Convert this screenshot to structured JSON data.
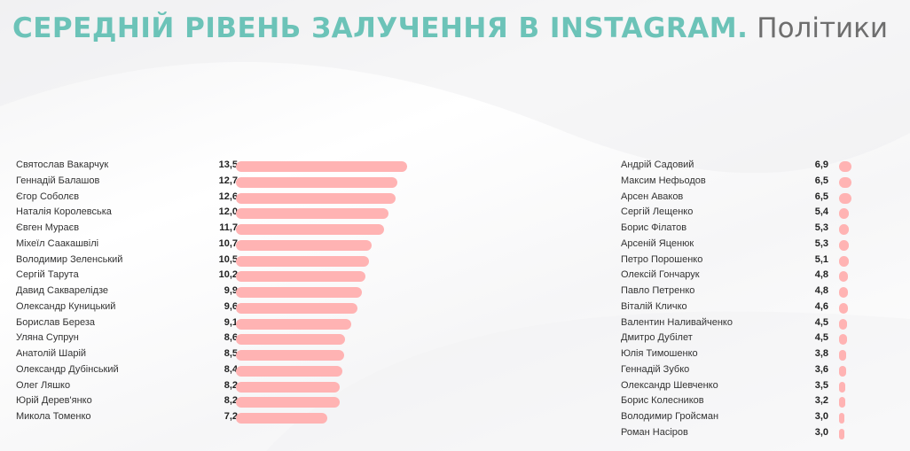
{
  "title": {
    "main": "СЕРЕДНІЙ РІВЕНЬ ЗАЛУЧЕННЯ В INSTAGRAM.",
    "sub": "Політики"
  },
  "colors": {
    "title_main": "#6cc3b8",
    "title_sub": "#6e6e6e",
    "bar": "#ffb3b3"
  },
  "chart_data": [
    {
      "type": "bar",
      "orientation": "horizontal",
      "categories": [
        "Святослав Вакарчук",
        "Геннадій Балашов",
        "Єгор Соболєв",
        "Наталія Королевська",
        "Євген Мураєв",
        "Міхеїл Саакашвілі",
        "Володимир Зеленський",
        "Сергій Тарута",
        "Давид Сакварелідзе",
        "Олександр Куницький",
        "Борислав Береза",
        "Уляна Супрун",
        "Анатолій Шарій",
        "Олександр Дубінський",
        "Олег Ляшко",
        "Юрій Дерев'янко",
        "Микола Томенко"
      ],
      "values": [
        13.5,
        12.7,
        12.6,
        12.0,
        11.7,
        10.7,
        10.5,
        10.2,
        9.9,
        9.6,
        9.1,
        8.6,
        8.5,
        8.4,
        8.2,
        8.2,
        7.2
      ],
      "labels": [
        "13,5",
        "12,7",
        "12,6",
        "12,0",
        "11,7",
        "10,7",
        "10,5",
        "10,2",
        "9,9",
        "9,6",
        "9,1",
        "8,6",
        "8,5",
        "8,4",
        "8,2",
        "8,2",
        "7,2"
      ]
    },
    {
      "type": "bar",
      "orientation": "horizontal",
      "categories": [
        "Андрій Садовий",
        "Максим Нефьодов",
        "Арсен Аваков",
        "Сергій Лещенко",
        "Борис Філатов",
        "Арсеній Яценюк",
        "Петро Порошенко",
        "Олексій Гончарук",
        "Павло Петренко",
        "Віталій Кличко",
        "Валентин Наливайченко",
        "Дмитро Дубілет",
        "Юлія Тимошенко",
        "Геннадій Зубко",
        "Олександр Шевченко",
        "Борис Колесников",
        "Володимир Гройсман",
        "Роман Насіров"
      ],
      "values": [
        6.9,
        6.5,
        6.5,
        5.4,
        5.3,
        5.3,
        5.1,
        4.8,
        4.8,
        4.6,
        4.5,
        4.5,
        3.8,
        3.6,
        3.5,
        3.2,
        3.0,
        3.0
      ],
      "labels": [
        "6,9",
        "6,5",
        "6,5",
        "5,4",
        "5,3",
        "5,3",
        "5,1",
        "4,8",
        "4,8",
        "4,6",
        "4,5",
        "4,5",
        "3,8",
        "3,6",
        "3,5",
        "3,2",
        "3,0",
        "3,0"
      ]
    }
  ]
}
